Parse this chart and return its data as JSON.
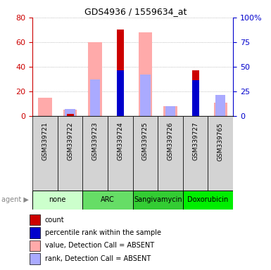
{
  "title": "GDS4936 / 1559634_at",
  "samples": [
    "GSM339721",
    "GSM339722",
    "GSM339723",
    "GSM339724",
    "GSM339725",
    "GSM339726",
    "GSM339727",
    "GSM339765"
  ],
  "agents": [
    {
      "label": "none",
      "color": "#ccffcc",
      "samples": [
        0,
        1
      ]
    },
    {
      "label": "ARC",
      "color": "#66dd66",
      "samples": [
        2,
        3
      ]
    },
    {
      "label": "Sangivamycin",
      "color": "#33cc33",
      "samples": [
        4,
        5
      ]
    },
    {
      "label": "Doxorubicin",
      "color": "#00ee00",
      "samples": [
        6,
        7
      ]
    }
  ],
  "count_red": [
    0,
    2,
    0,
    70,
    0,
    0,
    37,
    0
  ],
  "rank_blue": [
    0,
    0,
    0,
    37,
    0,
    0,
    29,
    0
  ],
  "value_pink": [
    15,
    5,
    60,
    0,
    68,
    8,
    0,
    11
  ],
  "rank_lightblue": [
    0,
    6,
    30,
    0,
    34,
    8,
    0,
    17
  ],
  "ylim_left": [
    0,
    80
  ],
  "ylim_right": [
    0,
    100
  ],
  "left_ticks": [
    0,
    20,
    40,
    60,
    80
  ],
  "right_ticks": [
    0,
    25,
    50,
    75,
    100
  ],
  "right_tick_labels": [
    "0",
    "25",
    "50",
    "75",
    "100%"
  ],
  "colors": {
    "count_red": "#cc0000",
    "rank_blue": "#0000cc",
    "value_pink": "#ffaaaa",
    "rank_lightblue": "#aaaaff",
    "left_axis": "#cc0000",
    "right_axis": "#0000cc",
    "grid": "#888888",
    "sample_bg": "#d3d3d3"
  },
  "legend_items": [
    {
      "color": "#cc0000",
      "label": "count"
    },
    {
      "color": "#0000cc",
      "label": "percentile rank within the sample"
    },
    {
      "color": "#ffaaaa",
      "label": "value, Detection Call = ABSENT"
    },
    {
      "color": "#aaaaff",
      "label": "rank, Detection Call = ABSENT"
    }
  ]
}
